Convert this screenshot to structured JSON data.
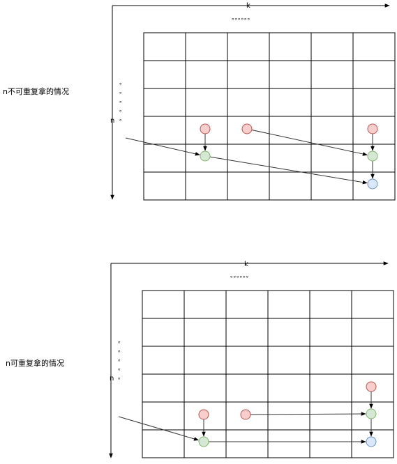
{
  "diagrams": [
    {
      "label": "n不可重复拿的情况",
      "k_label": "k",
      "n_label": "n",
      "top_dots": "。。。。。。",
      "side_dots": [
        "。",
        "。",
        "。",
        "。",
        "。"
      ],
      "grid": {
        "rows": 6,
        "cols": 6
      },
      "nodes": [
        {
          "id": "r1",
          "row": 3,
          "col": 1,
          "type": "red"
        },
        {
          "id": "r2",
          "row": 3,
          "col": 2,
          "type": "red"
        },
        {
          "id": "r3",
          "row": 3,
          "col": 5,
          "type": "red"
        },
        {
          "id": "g1",
          "row": 4,
          "col": 1,
          "type": "green"
        },
        {
          "id": "g2",
          "row": 4,
          "col": 5,
          "type": "green"
        },
        {
          "id": "b1",
          "row": 5,
          "col": 5,
          "type": "blue"
        }
      ],
      "edges": [
        {
          "from": "r1",
          "to": "g1"
        },
        {
          "from": "r2",
          "to": "g2"
        },
        {
          "from": "r3",
          "to": "g2"
        },
        {
          "from": "g2",
          "to": "b1"
        },
        {
          "from": "g1",
          "to": "b1"
        },
        {
          "from": "pointer",
          "to": "g1"
        }
      ]
    },
    {
      "label": "n可重复拿的情况",
      "k_label": "k",
      "n_label": "n",
      "top_dots": "。。。。。。",
      "side_dots": [
        "。",
        "。",
        "。",
        "。",
        "。"
      ],
      "grid": {
        "rows": 6,
        "cols": 6
      },
      "nodes": [
        {
          "id": "r3",
          "row": 3,
          "col": 5,
          "type": "red"
        },
        {
          "id": "r1",
          "row": 4,
          "col": 1,
          "type": "red"
        },
        {
          "id": "r2",
          "row": 4,
          "col": 2,
          "type": "red"
        },
        {
          "id": "g2",
          "row": 4,
          "col": 5,
          "type": "green"
        },
        {
          "id": "g1",
          "row": 5,
          "col": 1,
          "type": "green"
        },
        {
          "id": "b1",
          "row": 5,
          "col": 5,
          "type": "blue"
        }
      ],
      "edges": [
        {
          "from": "r3",
          "to": "g2"
        },
        {
          "from": "r2",
          "to": "g2"
        },
        {
          "from": "r1",
          "to": "g1"
        },
        {
          "from": "g2",
          "to": "b1"
        },
        {
          "from": "g1",
          "to": "b1"
        },
        {
          "from": "pointer",
          "to": "g1"
        }
      ]
    }
  ],
  "colors": {
    "red_fill": "#f8cecc",
    "red_stroke": "#b85450",
    "green_fill": "#d5e8d4",
    "green_stroke": "#82b366",
    "blue_fill": "#dae8fc",
    "blue_stroke": "#6c8ebf",
    "line": "#000000",
    "edge": "#333333"
  }
}
